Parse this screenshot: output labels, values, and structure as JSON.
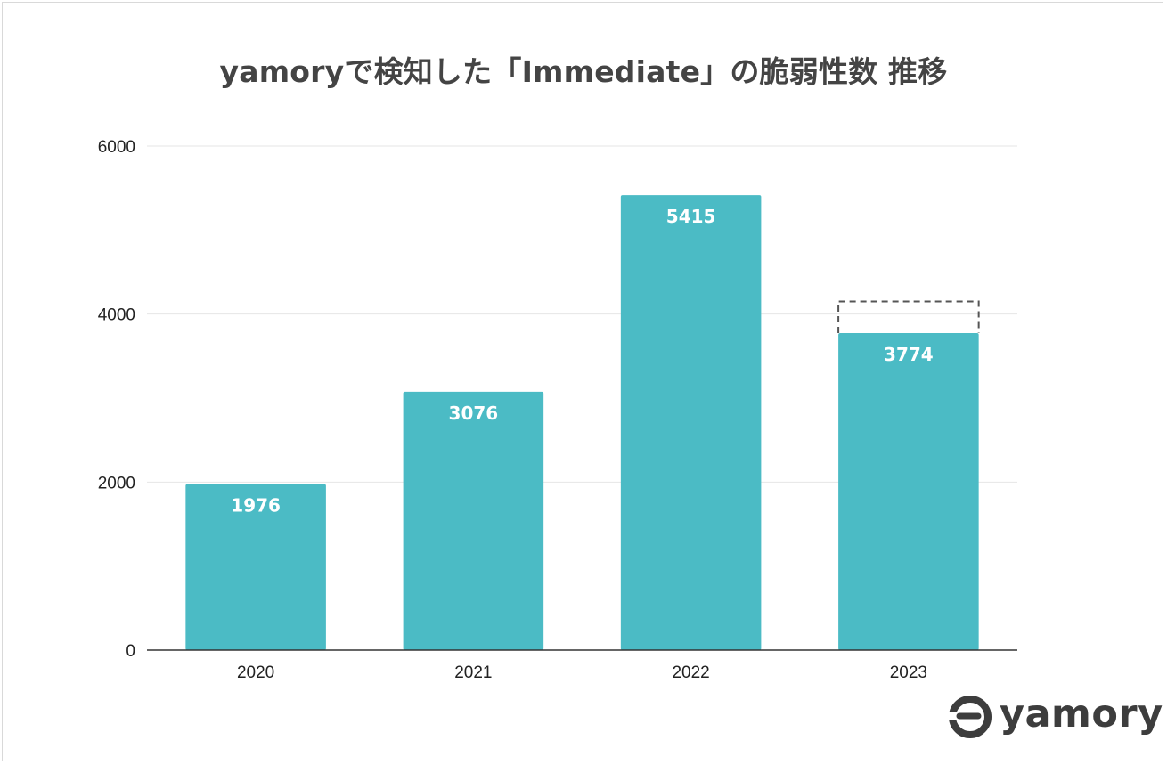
{
  "chart_data": {
    "type": "bar",
    "title": "yamoryで検知した「Immediate」の脆弱性数 推移",
    "categories": [
      "2020",
      "2021",
      "2022",
      "2023"
    ],
    "values": [
      1976,
      3076,
      5415,
      3774
    ],
    "data_labels": [
      "1976",
      "3076",
      "5415",
      "3774"
    ],
    "projected": {
      "category": "2023",
      "value": 4150,
      "style": "dashed-outline"
    },
    "ylim": [
      0,
      6000
    ],
    "yticks": [
      0,
      2000,
      4000,
      6000
    ],
    "ytick_labels": [
      "0",
      "2000",
      "4000",
      "6000"
    ],
    "xlabel": "",
    "ylabel": "",
    "grid": true,
    "bar_color": "#4bbbc5",
    "label_color": "#ffffff"
  },
  "brand": {
    "name": "yamory",
    "logo_icon": "yamory-e-mark-icon"
  }
}
